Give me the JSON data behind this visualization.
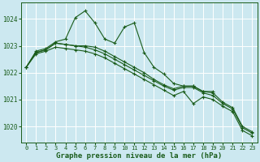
{
  "title": "Graphe pression niveau de la mer (hPa)",
  "bg_color": "#cce8f0",
  "grid_color": "#ffffff",
  "line_color": "#1a5c1a",
  "ylim": [
    1019.4,
    1024.6
  ],
  "yticks": [
    1020,
    1021,
    1022,
    1023,
    1024
  ],
  "xlim": [
    -0.5,
    23.5
  ],
  "xticks": [
    0,
    1,
    2,
    3,
    4,
    5,
    6,
    7,
    8,
    9,
    10,
    11,
    12,
    13,
    14,
    15,
    16,
    17,
    18,
    19,
    20,
    21,
    22,
    23
  ],
  "s1": [
    1022.2,
    1022.8,
    1022.9,
    1023.15,
    1023.25,
    1024.05,
    1024.3,
    1023.85,
    1023.25,
    1023.1,
    1023.7,
    1023.85,
    1022.75,
    1022.2,
    1021.95,
    1021.6,
    1021.5,
    1021.5,
    1021.3,
    1021.3,
    null,
    null,
    null,
    null
  ],
  "s2": [
    1022.2,
    1022.75,
    1022.85,
    1023.1,
    1023.05,
    1023.0,
    1023.0,
    1022.95,
    1022.8,
    1022.6,
    1022.4,
    1022.2,
    1022.0,
    1021.75,
    1021.55,
    1021.4,
    1021.5,
    1021.5,
    1021.3,
    1021.25,
    1020.9,
    1020.7,
    1020.0,
    1019.8
  ],
  "s3": [
    1022.2,
    1022.75,
    1022.85,
    1023.1,
    1023.05,
    1023.0,
    1022.95,
    1022.85,
    1022.7,
    1022.5,
    1022.3,
    1022.1,
    1021.9,
    1021.7,
    1021.5,
    1021.35,
    1021.45,
    1021.45,
    1021.25,
    1021.15,
    1020.85,
    1020.65,
    1019.95,
    1019.75
  ],
  "s4": [
    1022.2,
    1022.7,
    1022.8,
    1022.95,
    1022.9,
    1022.85,
    1022.8,
    1022.7,
    1022.55,
    1022.35,
    1022.15,
    1021.95,
    1021.75,
    1021.55,
    1021.35,
    1021.15,
    1021.3,
    1020.85,
    1021.1,
    1021.0,
    1020.75,
    1020.55,
    1019.85,
    1019.65
  ]
}
